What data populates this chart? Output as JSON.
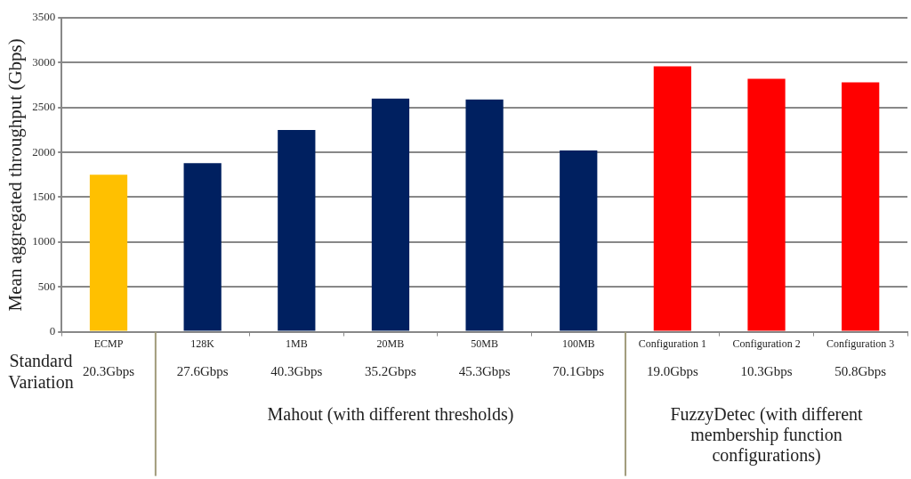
{
  "chart_data": {
    "type": "bar",
    "ylabel": "Mean aggregated throughput (Gbps)",
    "categories": [
      "ECMP",
      "128K",
      "1MB",
      "20MB",
      "50MB",
      "100MB",
      "Configuration 1",
      "Configuration 2",
      "Configuration 3"
    ],
    "values": [
      1750,
      1880,
      2250,
      2600,
      2590,
      2020,
      2960,
      2820,
      2780
    ],
    "colors": [
      "#ffc000",
      "#002060",
      "#002060",
      "#002060",
      "#002060",
      "#002060",
      "#ff0000",
      "#ff0000",
      "#ff0000"
    ],
    "ylim": [
      0,
      3500
    ],
    "yticks": [
      0,
      500,
      1000,
      1500,
      2000,
      2500,
      3000,
      3500
    ],
    "grid": "y",
    "legend": false,
    "annotations": [
      "Standard Variation",
      "Mahout (with different thresholds)",
      "FuzzyDetec (with different membership function configurations)",
      "20.3Gbps",
      "27.6Gbps",
      "40.3Gbps",
      "35.2Gbps",
      "45.3Gbps",
      "70.1Gbps",
      "19.0Gbps",
      "10.3Gbps",
      "50.8Gbps"
    ]
  }
}
